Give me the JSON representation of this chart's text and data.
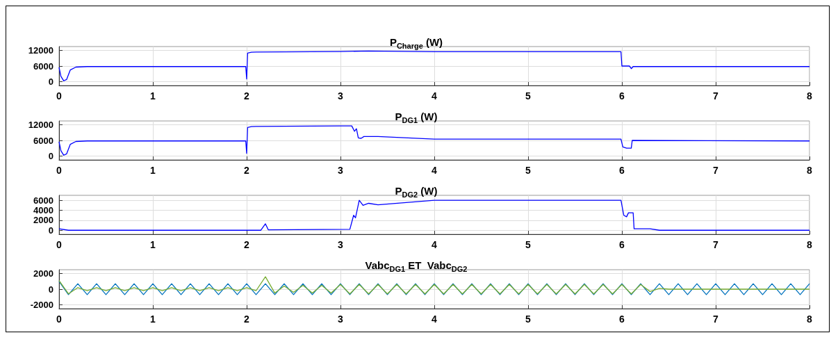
{
  "chart_data": [
    {
      "type": "line",
      "title": "P$_{Charge}$ (W)",
      "xlim": [
        0,
        8
      ],
      "xticks": [
        0,
        1,
        2,
        3,
        4,
        5,
        6,
        7,
        8
      ],
      "ylim": [
        -1500,
        13500
      ],
      "yticks": [
        0,
        6000,
        12000
      ],
      "grid": true,
      "series": [
        {
          "color": "#0000ff",
          "x": [
            0,
            0.02,
            0.05,
            0.08,
            0.12,
            0.18,
            0.3,
            1.99,
            2.0,
            2.01,
            2.05,
            2.1,
            3,
            3.3,
            4,
            5.99,
            6.0,
            6.08,
            6.1,
            6.12,
            8
          ],
          "values": [
            5500,
            2000,
            300,
            800,
            4500,
            5600,
            5800,
            5800,
            1000,
            11000,
            11300,
            11400,
            11600,
            11800,
            11500,
            11500,
            6000,
            6000,
            5000,
            5800,
            5800
          ]
        }
      ]
    },
    {
      "type": "line",
      "title": "P$_{DG1}$ (W)",
      "xlim": [
        0,
        8
      ],
      "xticks": [
        0,
        1,
        2,
        3,
        4,
        5,
        6,
        7,
        8
      ],
      "ylim": [
        -1500,
        13500
      ],
      "yticks": [
        0,
        6000,
        12000
      ],
      "grid": true,
      "series": [
        {
          "color": "#0000ff",
          "x": [
            0,
            0.02,
            0.05,
            0.08,
            0.12,
            0.18,
            0.3,
            1.99,
            2.0,
            2.01,
            2.05,
            2.1,
            3,
            3.12,
            3.15,
            3.17,
            3.19,
            3.22,
            3.25,
            3.4,
            4,
            5.99,
            6.01,
            6.05,
            6.1,
            6.11,
            8
          ],
          "values": [
            5500,
            2000,
            300,
            800,
            4500,
            5600,
            5800,
            5800,
            1000,
            11000,
            11300,
            11400,
            11600,
            11600,
            9500,
            10500,
            7000,
            6800,
            7500,
            7500,
            6500,
            6500,
            3500,
            3000,
            3000,
            6000,
            5800
          ]
        }
      ]
    },
    {
      "type": "line",
      "title": "P$_{DG2}$ (W)",
      "xlim": [
        0,
        8
      ],
      "xticks": [
        0,
        1,
        2,
        3,
        4,
        5,
        6,
        7,
        8
      ],
      "ylim": [
        -800,
        7000
      ],
      "yticks": [
        0,
        2000,
        4000,
        6000
      ],
      "grid": true,
      "series": [
        {
          "color": "#0000ff",
          "x": [
            0,
            0.1,
            2.15,
            2.2,
            2.23,
            3.1,
            3.14,
            3.16,
            3.2,
            3.24,
            3.3,
            3.4,
            4,
            5.99,
            6.02,
            6.05,
            6.07,
            6.12,
            6.13,
            6.3,
            6.4,
            8
          ],
          "values": [
            300,
            0,
            0,
            1300,
            100,
            200,
            3000,
            2500,
            6000,
            5000,
            5400,
            5100,
            6000,
            6000,
            3000,
            2700,
            3500,
            3500,
            300,
            300,
            0,
            0
          ]
        }
      ]
    },
    {
      "type": "line",
      "title": "Vabc$_{DG1}$ ET  Vabc$_{DG2}$",
      "xlim": [
        0,
        8
      ],
      "xticks": [
        0,
        1,
        2,
        3,
        4,
        5,
        6,
        7,
        8
      ],
      "ylim": [
        -2500,
        2500
      ],
      "yticks": [
        -2000,
        0,
        2000
      ],
      "grid": true,
      "x": [
        0,
        0.1,
        0.2,
        0.3,
        0.4,
        0.5,
        0.6,
        0.7,
        0.8,
        0.9,
        1,
        1.1,
        1.2,
        1.3,
        1.4,
        1.5,
        1.6,
        1.7,
        1.8,
        1.9,
        2,
        2.1,
        2.2,
        2.3,
        2.4,
        2.5,
        2.6,
        2.7,
        2.8,
        2.9,
        3,
        3.1,
        3.2,
        3.3,
        3.4,
        3.5,
        3.6,
        3.7,
        3.8,
        3.9,
        4,
        4.1,
        4.2,
        4.3,
        4.4,
        4.5,
        4.6,
        4.7,
        4.8,
        4.9,
        5,
        5.1,
        5.2,
        5.3,
        5.4,
        5.5,
        5.6,
        5.7,
        5.8,
        5.9,
        6,
        6.1,
        6.2,
        6.3,
        6.4,
        6.5,
        6.6,
        6.7,
        6.8,
        6.9,
        7,
        7.1,
        7.2,
        7.3,
        7.4,
        7.5,
        7.6,
        7.7,
        7.8,
        7.9,
        8
      ],
      "series": [
        {
          "color": "#0072bd",
          "values": [
            1000,
            -700,
            700,
            -700,
            700,
            -700,
            700,
            -700,
            700,
            -700,
            700,
            -700,
            700,
            -700,
            700,
            -700,
            700,
            -700,
            700,
            -700,
            700,
            -700,
            700,
            -700,
            700,
            -700,
            700,
            -700,
            700,
            -700,
            700,
            -700,
            700,
            -700,
            700,
            -700,
            700,
            -700,
            700,
            -700,
            700,
            -700,
            700,
            -700,
            700,
            -700,
            700,
            -700,
            700,
            -700,
            700,
            -700,
            700,
            -700,
            700,
            -700,
            700,
            -700,
            700,
            -700,
            700,
            -700,
            700,
            -700,
            700,
            -700,
            700,
            -700,
            700,
            -700,
            700,
            -700,
            700,
            -700,
            700,
            -700,
            700,
            -700,
            700,
            -700,
            700
          ]
        },
        {
          "color": "#77ac30",
          "values": [
            1100,
            -600,
            200,
            -200,
            200,
            -200,
            200,
            -200,
            200,
            -200,
            200,
            -200,
            200,
            -200,
            200,
            -200,
            200,
            -200,
            200,
            -200,
            200,
            -200,
            1600,
            -500,
            400,
            -400,
            500,
            -500,
            500,
            -500,
            600,
            -600,
            600,
            -600,
            600,
            -600,
            600,
            -600,
            600,
            -600,
            600,
            -600,
            600,
            -600,
            600,
            -600,
            600,
            -600,
            600,
            -600,
            600,
            -600,
            600,
            -600,
            600,
            -600,
            600,
            -600,
            600,
            -600,
            600,
            -600,
            600,
            -300,
            100,
            0,
            0,
            0,
            0,
            0,
            0,
            0,
            0,
            0,
            0,
            0,
            0,
            0,
            0,
            0,
            0
          ]
        }
      ]
    }
  ]
}
